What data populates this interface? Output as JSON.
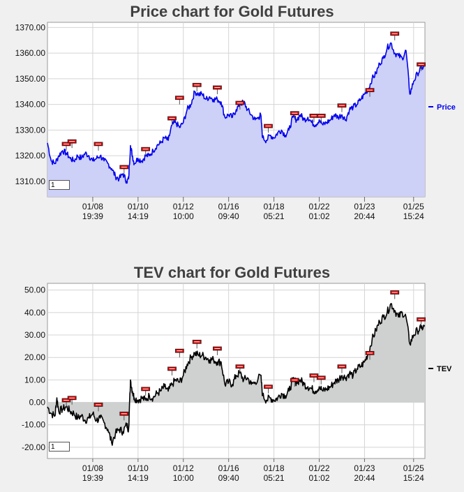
{
  "chart_data": [
    {
      "type": "area",
      "title": "Price chart for Gold Futures",
      "legend": {
        "label": "Price",
        "position": "right"
      },
      "color": "#0000ee",
      "fill": "#cdd0f7",
      "ylim": [
        1304,
        1372
      ],
      "yticks": [
        "1370.00",
        "1360.00",
        "1350.00",
        "1340.00",
        "1330.00",
        "1320.00",
        "1310.00"
      ],
      "ytick_values": [
        1370,
        1360,
        1350,
        1340,
        1330,
        1320,
        1310
      ],
      "xticks": [
        {
          "date": "01/08",
          "time": "19:39",
          "t": 0.12
        },
        {
          "date": "01/10",
          "time": "14:19",
          "t": 0.24
        },
        {
          "date": "01/12",
          "time": "10:00",
          "t": 0.36
        },
        {
          "date": "01/16",
          "time": "09:40",
          "t": 0.48
        },
        {
          "date": "01/18",
          "time": "05:21",
          "t": 0.6
        },
        {
          "date": "01/22",
          "time": "01:02",
          "t": 0.72
        },
        {
          "date": "01/23",
          "time": "20:44",
          "t": 0.84
        },
        {
          "date": "01/25",
          "time": "15:24",
          "t": 0.97
        }
      ],
      "series": [
        {
          "values": [
            [
              0.0,
              1325
            ],
            [
              0.01,
              1318
            ],
            [
              0.02,
              1317
            ],
            [
              0.03,
              1320
            ],
            [
              0.04,
              1322
            ],
            [
              0.05,
              1321
            ],
            [
              0.06,
              1319
            ],
            [
              0.07,
              1318
            ],
            [
              0.08,
              1320
            ],
            [
              0.09,
              1319
            ],
            [
              0.1,
              1321
            ],
            [
              0.11,
              1320
            ],
            [
              0.12,
              1318
            ],
            [
              0.13,
              1319
            ],
            [
              0.14,
              1320
            ],
            [
              0.15,
              1318
            ],
            [
              0.16,
              1317
            ],
            [
              0.17,
              1315
            ],
            [
              0.18,
              1312
            ],
            [
              0.19,
              1311
            ],
            [
              0.2,
              1313
            ],
            [
              0.21,
              1310
            ],
            [
              0.215,
              1311
            ],
            [
              0.22,
              1324
            ],
            [
              0.225,
              1320
            ],
            [
              0.23,
              1317
            ],
            [
              0.24,
              1319
            ],
            [
              0.25,
              1318
            ],
            [
              0.26,
              1320
            ],
            [
              0.27,
              1320
            ],
            [
              0.28,
              1322
            ],
            [
              0.29,
              1324
            ],
            [
              0.3,
              1325
            ],
            [
              0.31,
              1327
            ],
            [
              0.32,
              1326
            ],
            [
              0.33,
              1332
            ],
            [
              0.34,
              1333
            ],
            [
              0.35,
              1331
            ],
            [
              0.36,
              1333
            ],
            [
              0.37,
              1338
            ],
            [
              0.38,
              1340
            ],
            [
              0.39,
              1345
            ],
            [
              0.4,
              1344
            ],
            [
              0.41,
              1344
            ],
            [
              0.42,
              1342
            ],
            [
              0.43,
              1343
            ],
            [
              0.44,
              1342
            ],
            [
              0.45,
              1342
            ],
            [
              0.46,
              1341
            ],
            [
              0.47,
              1335
            ],
            [
              0.48,
              1336
            ],
            [
              0.49,
              1335
            ],
            [
              0.5,
              1338
            ],
            [
              0.51,
              1340
            ],
            [
              0.52,
              1341
            ],
            [
              0.53,
              1338
            ],
            [
              0.54,
              1336
            ],
            [
              0.55,
              1334
            ],
            [
              0.56,
              1335
            ],
            [
              0.565,
              1336
            ],
            [
              0.57,
              1327
            ],
            [
              0.58,
              1326
            ],
            [
              0.59,
              1328
            ],
            [
              0.6,
              1327
            ],
            [
              0.61,
              1329
            ],
            [
              0.62,
              1330
            ],
            [
              0.63,
              1328
            ],
            [
              0.64,
              1330
            ],
            [
              0.65,
              1335
            ],
            [
              0.66,
              1334
            ],
            [
              0.67,
              1336
            ],
            [
              0.68,
              1334
            ],
            [
              0.69,
              1335
            ],
            [
              0.7,
              1333
            ],
            [
              0.71,
              1332
            ],
            [
              0.72,
              1334
            ],
            [
              0.73,
              1332
            ],
            [
              0.74,
              1333
            ],
            [
              0.75,
              1334
            ],
            [
              0.76,
              1336
            ],
            [
              0.77,
              1335
            ],
            [
              0.78,
              1336
            ],
            [
              0.79,
              1334
            ],
            [
              0.8,
              1338
            ],
            [
              0.81,
              1339
            ],
            [
              0.82,
              1340
            ],
            [
              0.83,
              1342
            ],
            [
              0.84,
              1344
            ],
            [
              0.85,
              1346
            ],
            [
              0.86,
              1350
            ],
            [
              0.87,
              1352
            ],
            [
              0.88,
              1356
            ],
            [
              0.89,
              1358
            ],
            [
              0.9,
              1362
            ],
            [
              0.91,
              1364
            ],
            [
              0.92,
              1360
            ],
            [
              0.93,
              1359
            ],
            [
              0.94,
              1358
            ],
            [
              0.95,
              1361
            ],
            [
              0.96,
              1344
            ],
            [
              0.97,
              1349
            ],
            [
              0.98,
              1352
            ],
            [
              0.99,
              1354
            ],
            [
              1.0,
              1355
            ]
          ]
        }
      ],
      "markers": [
        [
          0.05,
          1322
        ],
        [
          0.065,
          1323
        ],
        [
          0.135,
          1322
        ],
        [
          0.203,
          1313
        ],
        [
          0.26,
          1320
        ],
        [
          0.33,
          1332
        ],
        [
          0.35,
          1340
        ],
        [
          0.396,
          1345
        ],
        [
          0.45,
          1344
        ],
        [
          0.51,
          1338
        ],
        [
          0.585,
          1329
        ],
        [
          0.655,
          1334
        ],
        [
          0.706,
          1333
        ],
        [
          0.725,
          1333
        ],
        [
          0.78,
          1337
        ],
        [
          0.854,
          1343
        ],
        [
          0.92,
          1365
        ],
        [
          0.99,
          1353
        ]
      ],
      "input_value": "1"
    },
    {
      "type": "area",
      "title": "TEV chart for Gold Futures",
      "legend": {
        "label": "TEV",
        "position": "right"
      },
      "color": "#000000",
      "fill": "#cfd0d0",
      "ylim": [
        -25,
        53
      ],
      "baseline": 0,
      "yticks": [
        "50.00",
        "40.00",
        "30.00",
        "20.00",
        "10.00",
        "0.00",
        "-10.00",
        "-20.00"
      ],
      "ytick_values": [
        50,
        40,
        30,
        20,
        10,
        0,
        -10,
        -20
      ],
      "xticks": [
        {
          "date": "01/08",
          "time": "19:39",
          "t": 0.12
        },
        {
          "date": "01/10",
          "time": "14:19",
          "t": 0.24
        },
        {
          "date": "01/12",
          "time": "10:00",
          "t": 0.36
        },
        {
          "date": "01/16",
          "time": "09:40",
          "t": 0.48
        },
        {
          "date": "01/18",
          "time": "05:21",
          "t": 0.6
        },
        {
          "date": "01/22",
          "time": "01:02",
          "t": 0.72
        },
        {
          "date": "01/23",
          "time": "20:44",
          "t": 0.84
        },
        {
          "date": "01/25",
          "time": "15:24",
          "t": 0.97
        }
      ],
      "series": [
        {
          "values": [
            [
              0.0,
              -2
            ],
            [
              0.01,
              -5
            ],
            [
              0.02,
              -6
            ],
            [
              0.025,
              2
            ],
            [
              0.03,
              -4
            ],
            [
              0.04,
              -3
            ],
            [
              0.05,
              -2
            ],
            [
              0.06,
              -4
            ],
            [
              0.07,
              -5
            ],
            [
              0.08,
              -7
            ],
            [
              0.09,
              -6
            ],
            [
              0.1,
              -8
            ],
            [
              0.11,
              -7
            ],
            [
              0.12,
              -5
            ],
            [
              0.13,
              -8
            ],
            [
              0.14,
              -7
            ],
            [
              0.15,
              -9
            ],
            [
              0.16,
              -12
            ],
            [
              0.17,
              -18
            ],
            [
              0.18,
              -14
            ],
            [
              0.19,
              -12
            ],
            [
              0.2,
              -13
            ],
            [
              0.21,
              -10
            ],
            [
              0.215,
              -12
            ],
            [
              0.22,
              10
            ],
            [
              0.225,
              5
            ],
            [
              0.23,
              2
            ],
            [
              0.24,
              1
            ],
            [
              0.25,
              2
            ],
            [
              0.26,
              1
            ],
            [
              0.27,
              3
            ],
            [
              0.28,
              2
            ],
            [
              0.29,
              4
            ],
            [
              0.3,
              5
            ],
            [
              0.31,
              7
            ],
            [
              0.32,
              5
            ],
            [
              0.33,
              8
            ],
            [
              0.34,
              10
            ],
            [
              0.35,
              9
            ],
            [
              0.36,
              12
            ],
            [
              0.37,
              17
            ],
            [
              0.38,
              20
            ],
            [
              0.39,
              22
            ],
            [
              0.4,
              21
            ],
            [
              0.41,
              21
            ],
            [
              0.42,
              20
            ],
            [
              0.43,
              19
            ],
            [
              0.44,
              19
            ],
            [
              0.45,
              18
            ],
            [
              0.46,
              18
            ],
            [
              0.47,
              8
            ],
            [
              0.48,
              9
            ],
            [
              0.49,
              8
            ],
            [
              0.5,
              12
            ],
            [
              0.51,
              13
            ],
            [
              0.52,
              10
            ],
            [
              0.53,
              11
            ],
            [
              0.54,
              8
            ],
            [
              0.55,
              9
            ],
            [
              0.565,
              12
            ],
            [
              0.57,
              3
            ],
            [
              0.58,
              1
            ],
            [
              0.59,
              2
            ],
            [
              0.6,
              1
            ],
            [
              0.61,
              2
            ],
            [
              0.62,
              4
            ],
            [
              0.63,
              3
            ],
            [
              0.64,
              5
            ],
            [
              0.65,
              10
            ],
            [
              0.66,
              9
            ],
            [
              0.67,
              10
            ],
            [
              0.68,
              8
            ],
            [
              0.69,
              7
            ],
            [
              0.7,
              6
            ],
            [
              0.71,
              5
            ],
            [
              0.72,
              7
            ],
            [
              0.73,
              5
            ],
            [
              0.74,
              6
            ],
            [
              0.75,
              7
            ],
            [
              0.76,
              9
            ],
            [
              0.77,
              10
            ],
            [
              0.78,
              12
            ],
            [
              0.79,
              11
            ],
            [
              0.8,
              13
            ],
            [
              0.81,
              12
            ],
            [
              0.82,
              15
            ],
            [
              0.83,
              16
            ],
            [
              0.84,
              18
            ],
            [
              0.85,
              22
            ],
            [
              0.86,
              28
            ],
            [
              0.87,
              32
            ],
            [
              0.88,
              36
            ],
            [
              0.89,
              38
            ],
            [
              0.9,
              40
            ],
            [
              0.91,
              44
            ],
            [
              0.92,
              41
            ],
            [
              0.93,
              38
            ],
            [
              0.94,
              40
            ],
            [
              0.95,
              38
            ],
            [
              0.96,
              26
            ],
            [
              0.97,
              30
            ],
            [
              0.98,
              32
            ],
            [
              0.99,
              33
            ],
            [
              1.0,
              34
            ]
          ]
        }
      ],
      "markers": [
        [
          0.05,
          -2
        ],
        [
          0.065,
          -1
        ],
        [
          0.135,
          -4
        ],
        [
          0.203,
          -8
        ],
        [
          0.26,
          3
        ],
        [
          0.33,
          12
        ],
        [
          0.35,
          20
        ],
        [
          0.396,
          24
        ],
        [
          0.45,
          21
        ],
        [
          0.51,
          13
        ],
        [
          0.585,
          4
        ],
        [
          0.655,
          7
        ],
        [
          0.706,
          9
        ],
        [
          0.725,
          8
        ],
        [
          0.78,
          13
        ],
        [
          0.854,
          19
        ],
        [
          0.92,
          46
        ],
        [
          0.99,
          34
        ]
      ],
      "input_value": "1"
    }
  ]
}
